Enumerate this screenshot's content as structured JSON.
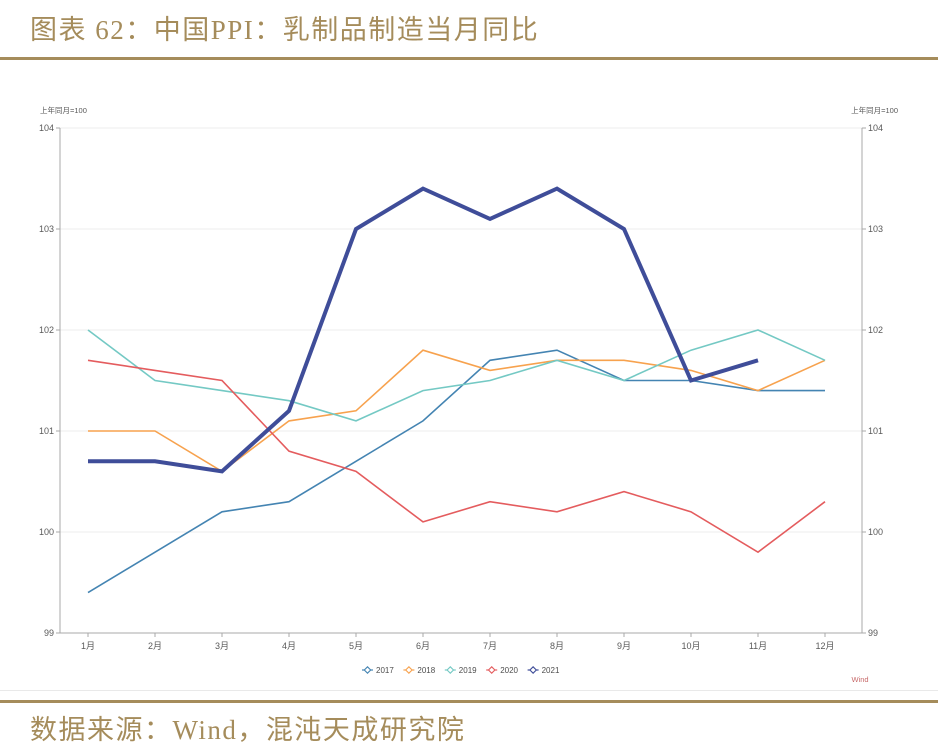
{
  "figure": {
    "title": "图表 62：中国PPI：乳制品制造当月同比",
    "source": "数据来源：Wind，混沌天成研究院",
    "watermark": "Wind",
    "accent_color": "#a58c5b"
  },
  "chart_data": {
    "type": "line",
    "title": "中国PPI：乳制品制造当月同比",
    "axis_note_left": "上年同月=100",
    "axis_note_right": "上年同月=100",
    "categories": [
      "1月",
      "2月",
      "3月",
      "4月",
      "5月",
      "6月",
      "7月",
      "8月",
      "9月",
      "10月",
      "11月",
      "12月"
    ],
    "y_ticks": [
      99,
      100,
      101,
      102,
      103,
      104
    ],
    "ylim": [
      99,
      104
    ],
    "grid": true,
    "legend_position": "bottom",
    "series": [
      {
        "name": "2017",
        "color": "#4484b2",
        "width": 1.6,
        "values": [
          99.4,
          99.8,
          100.2,
          100.3,
          100.7,
          101.1,
          101.7,
          101.8,
          101.5,
          101.5,
          101.4,
          101.4
        ]
      },
      {
        "name": "2018",
        "color": "#f7a24e",
        "width": 1.6,
        "values": [
          101.0,
          101.0,
          100.6,
          101.1,
          101.2,
          101.8,
          101.6,
          101.7,
          101.7,
          101.6,
          101.4,
          101.7
        ]
      },
      {
        "name": "2019",
        "color": "#74c9c4",
        "width": 1.6,
        "values": [
          102.0,
          101.5,
          101.4,
          101.3,
          101.1,
          101.4,
          101.5,
          101.7,
          101.5,
          101.8,
          102.0,
          101.7
        ]
      },
      {
        "name": "2020",
        "color": "#e45c5e",
        "width": 1.6,
        "values": [
          101.7,
          101.6,
          101.5,
          100.8,
          100.6,
          100.1,
          100.3,
          100.2,
          100.4,
          100.2,
          99.8,
          100.3
        ]
      },
      {
        "name": "2021",
        "color": "#3f4d99",
        "width": 4,
        "values": [
          100.7,
          100.7,
          100.6,
          101.2,
          103.0,
          103.4,
          103.1,
          103.4,
          103.0,
          101.5,
          101.7,
          null
        ]
      }
    ]
  }
}
